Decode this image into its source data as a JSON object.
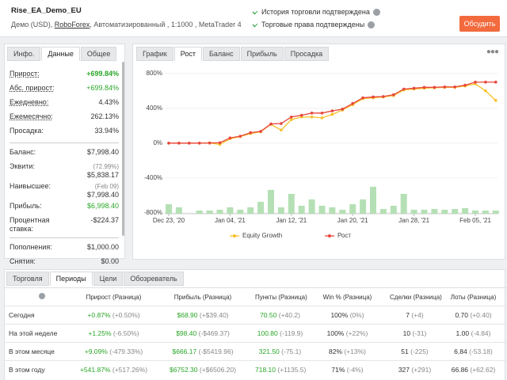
{
  "header": {
    "title": "Rise_EA_Demo_EU",
    "info_before": "Демо (USD), ",
    "broker": "RoboForex",
    "info_after": ", Автоматизированный , 1:1000 , MetaTrader 4",
    "verifications": [
      "История торговли подтверждена",
      "Торговые права подтверждены"
    ],
    "button": "Обсудить"
  },
  "left_panel": {
    "tabs": [
      "Инфо.",
      "Данные",
      "Общее"
    ],
    "active_tab": 1,
    "groups": [
      [
        {
          "label": "Прирост:",
          "value": "+699.84%",
          "underlined": true,
          "color": "#2aa62a",
          "bold": true
        },
        {
          "label": "Абс. прирост:",
          "value": "+699.84%",
          "underlined": true,
          "color": "#2aa62a"
        },
        {
          "label": "Ежедневно:",
          "value": "4.43%",
          "underlined": true
        },
        {
          "label": "Ежемесячно:",
          "value": "262.13%",
          "underlined": true
        },
        {
          "label": "Просадка:",
          "value": "33.94%"
        }
      ],
      [
        {
          "label": "Баланс:",
          "value": "$7,998.40"
        },
        {
          "label": "Эквити:",
          "sub": "(72.99%)",
          "value": "$5,838.17"
        },
        {
          "label": "Наивысшее:",
          "sub": "(Feb 09)",
          "value": "$7,998.40"
        },
        {
          "label": "Прибыль:",
          "value": "$6,998.40",
          "color": "#2aa62a"
        },
        {
          "label": "Процентная ставка:",
          "value": "-$224.37"
        }
      ],
      [
        {
          "label": "Пополнения:",
          "value": "$1,000.00"
        },
        {
          "label": "Снятия:",
          "value": "$0.00"
        }
      ]
    ]
  },
  "chart_tabs": [
    "График",
    "Рост",
    "Баланс",
    "Прибыль",
    "Просадка"
  ],
  "active_chart_tab": 1,
  "chart_data": {
    "type": "line",
    "categories": [
      "Dec 23, '20",
      null,
      null,
      null,
      null,
      null,
      "Jan 04, '21",
      null,
      null,
      null,
      null,
      null,
      "Jan 12, '21",
      null,
      null,
      null,
      null,
      null,
      "Jan 20, '21",
      null,
      null,
      null,
      null,
      null,
      "Jan 28, '21",
      null,
      null,
      null,
      null,
      null,
      "Feb 05, '21",
      null,
      null
    ],
    "series": [
      {
        "name": "Equity Growth",
        "color": "#f5c02a",
        "values": [
          0,
          0,
          0,
          0,
          2,
          -15,
          50,
          75,
          110,
          130,
          215,
          150,
          270,
          300,
          300,
          290,
          330,
          380,
          440,
          510,
          520,
          530,
          545,
          610,
          620,
          630,
          635,
          640,
          640,
          655,
          680,
          600,
          490
        ]
      },
      {
        "name": "Рост",
        "color": "#e8463c",
        "values": [
          0,
          0,
          0,
          0,
          2,
          5,
          60,
          80,
          120,
          135,
          220,
          225,
          300,
          320,
          345,
          345,
          370,
          390,
          455,
          520,
          530,
          535,
          555,
          620,
          630,
          640,
          640,
          645,
          645,
          665,
          700,
          700,
          700
        ]
      }
    ],
    "bars": {
      "color": "#b5e0b5",
      "values": [
        -700,
        -736,
        null,
        -773,
        -773,
        -764,
        -736,
        -764,
        -736,
        -673,
        -536,
        -736,
        -582,
        -718,
        -645,
        -718,
        -736,
        -764,
        -700,
        -645,
        -500,
        -755,
        -718,
        -582,
        -764,
        -764,
        -755,
        -764,
        -755,
        -745,
        -773,
        -773,
        -773
      ]
    },
    "ylim": [
      -810,
      870
    ],
    "yticks": [
      {
        "value": -800,
        "label": "-800%"
      },
      {
        "value": -400,
        "label": "-400%"
      },
      {
        "value": 0,
        "label": "0%"
      },
      {
        "value": 400,
        "label": "400%"
      },
      {
        "value": 800,
        "label": "800%"
      }
    ],
    "grid": true,
    "legend": "bottom"
  },
  "stats_table": {
    "tabs": [
      "Торговля",
      "Периоды",
      "Цели",
      "Обозреватель"
    ],
    "active_tab": 1,
    "headers": [
      "Прирост (Разница)",
      "Прибыль (Разница)",
      "Пункты (Разница)",
      "Win % (Разница)",
      "Сделки (Разница)",
      "Лоты (Разница)"
    ],
    "column_colors": [
      "#2aa62a",
      "#2aa62a",
      "#2aa62a",
      "#333333",
      "#333333",
      "#333333"
    ],
    "rows": [
      {
        "label": "Сегодня",
        "cells": [
          [
            "+0.87%",
            "(+0.50%)"
          ],
          [
            "$68.90",
            "(+$39.40)"
          ],
          [
            "70.50",
            "(+40.2)"
          ],
          [
            "100%",
            "(0%)"
          ],
          [
            "7",
            "(+4)"
          ],
          [
            "0.70",
            "(+0.40)"
          ]
        ]
      },
      {
        "label": "На этой неделе",
        "cells": [
          [
            "+1.25%",
            "(-6.50%)"
          ],
          [
            "$98.40",
            "(-$469.37)"
          ],
          [
            "100.80",
            "(-119.9)"
          ],
          [
            "100%",
            "(+22%)"
          ],
          [
            "10",
            "(-31)"
          ],
          [
            "1.00",
            "(-4.84)"
          ]
        ]
      },
      {
        "label": "В этом месяце",
        "cells": [
          [
            "+9.09%",
            "(-479.33%)"
          ],
          [
            "$666.17",
            "(-$5419.96)"
          ],
          [
            "321.50",
            "(-75.1)"
          ],
          [
            "82%",
            "(+13%)"
          ],
          [
            "51",
            "(-225)"
          ],
          [
            "6.84",
            "(-53.18)"
          ]
        ]
      },
      {
        "label": "В этом году",
        "cells": [
          [
            "+541.87%",
            "(+517.26%)"
          ],
          [
            "$6752.30",
            "(+$6506.20)"
          ],
          [
            "718.10",
            "(+1135.5)"
          ],
          [
            "71%",
            "(-4%)"
          ],
          [
            "327",
            "(+291)"
          ],
          [
            "66.86",
            "(+62.62)"
          ]
        ]
      }
    ]
  }
}
